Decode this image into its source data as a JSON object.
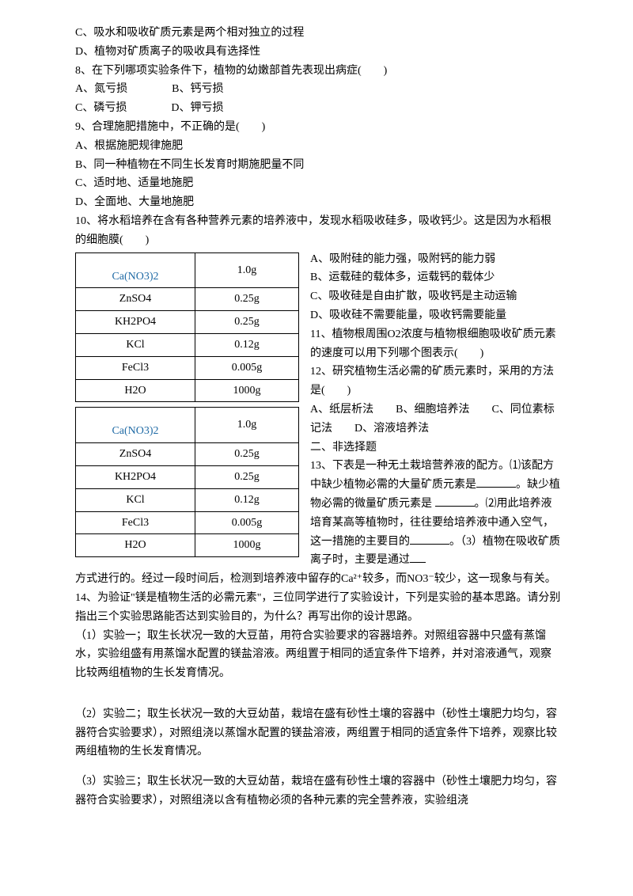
{
  "lines_top": [
    "C、吸水和吸收矿质元素是两个相对独立的过程",
    "D、植物对矿质离子的吸收具有选择性",
    "8、在下列哪项实验条件下，植物的幼嫩部首先表现出病症(　　)",
    "A、氮亏损　　　　B、钙亏损",
    "C、磷亏损　　　　D、钾亏损",
    "9、合理施肥措施中，不正确的是(　　)",
    "A、根据施肥规律施肥",
    "B、同一种植物在不同生长发育时期施肥量不同",
    "C、适时地、适量地施肥",
    "D、全面地、大量地施肥",
    "10、将水稻培养在含有各种营养元素的培养液中，发现水稻吸收硅多，吸收钙少。这是因为水稻根的细胞膜(　　)"
  ],
  "table_a": [
    {
      "c1": "Ca(NO3)2",
      "c2": "1.0g",
      "cls": "chem"
    },
    {
      "c1": "ZnSO4",
      "c2": "0.25g",
      "cls": ""
    },
    {
      "c1": "KH2PO4",
      "c2": "0.25g",
      "cls": ""
    },
    {
      "c1": "KCl",
      "c2": "0.12g",
      "cls": ""
    },
    {
      "c1": "FeCl3",
      "c2": "0.005g",
      "cls": ""
    },
    {
      "c1": "H2O",
      "c2": "1000g",
      "cls": ""
    }
  ],
  "table_b": [
    {
      "c1": "Ca(NO3)2",
      "c2": "1.0g",
      "cls": "chem"
    },
    {
      "c1": "ZnSO4",
      "c2": "0.25g",
      "cls": ""
    },
    {
      "c1": "KH2PO4",
      "c2": "0.25g",
      "cls": ""
    },
    {
      "c1": "KCl",
      "c2": "0.12g",
      "cls": ""
    },
    {
      "c1": "FeCl3",
      "c2": "0.005g",
      "cls": ""
    },
    {
      "c1": "H2O",
      "c2": "1000g",
      "cls": ""
    }
  ],
  "wrapped_right": [
    "A、吸附硅的能力强，吸附钙的能力弱",
    "B、运载硅的载体多，运载钙的载体少",
    "C、吸收硅是自由扩散，吸收钙是主动运输",
    "D、吸收硅不需要能量，吸收钙需要能量",
    "11、植物根周围O2浓度与植物根细胞吸收矿质元素的速度可以用下列哪个图表示(　　)",
    "12、研究植物生活必需的矿质元素时，采用的方法是(　　)",
    "A、纸层析法　　B、细胞培养法　　C、同位素标记法　　D、溶液培养法",
    "二、非选择题"
  ],
  "q13_head": "13、下表是一种无土栽培营养液的配方。⑴该配方中缺少植物必需的大量矿质元素是",
  "q13_mid1": "。缺少植物必需的微量矿质元素是 ",
  "q13_mid2": "。⑵用此培养液培育某高等植物时，往往要给培养液中通入空气，这一措施的主要目的",
  "q13_mid3": "。（3）植物在吸收矿质离子时，主要是通过",
  "after_wrap": "方式进行的。经过一段时间后，检测到培养液中留存的Ca²⁺较多，而NO3⁻较少，这一现象与有关。",
  "q14_head": "14、为验证\"镁是植物生活的必需元素\"，三位同学进行了实验设计，下列是实验的基本思路。请分别指出三个实验思路能否达到实验目的，为什么？再写出你的设计思路。",
  "exp1": "（1）实验一；取生长状况一致的大豆苗，用符合实验要求的容器培养。对照组容器中只盛有蒸馏水，实验组盛有用蒸馏水配置的镁盐溶液。两组置于相同的适宜条件下培养，并对溶液通气，观察比较两组植物的生长发育情况。",
  "exp2": "（2）实验二；取生长状况一致的大豆幼苗，栽培在盛有砂性土壤的容器中（砂性土壤肥力均匀，容器符合实验要求），对照组浇以蒸馏水配置的镁盐溶液，两组置于相同的适宜条件下培养，观察比较两组植物的生长发育情况。",
  "exp3": "（3）实验三；取生长状况一致的大豆幼苗，栽培在盛有砂性土壤的容器中（砂性土壤肥力均匀，容器符合实验要求），对照组浇以含有植物必须的各种元素的完全营养液，实验组浇"
}
